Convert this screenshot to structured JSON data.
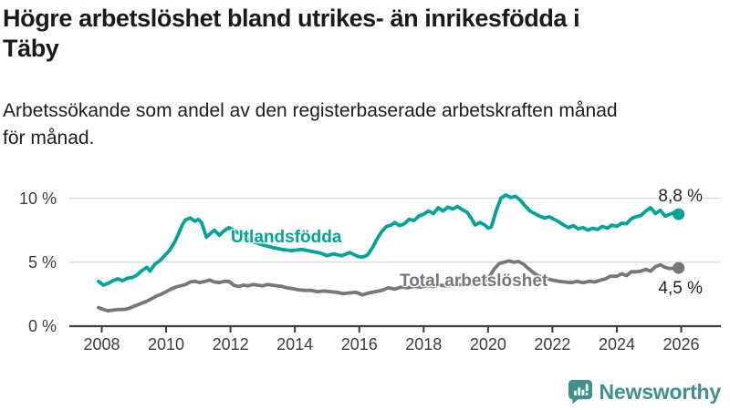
{
  "title": {
    "line1": "Högre arbetslöshet bland utrikes- än inrikesfödda i",
    "line2": "Täby"
  },
  "subtitle": {
    "line1": "Arbetssökande som andel av den registerbaserade arbetskraften månad",
    "line2": "för månad."
  },
  "footer": {
    "brand": "Newsworthy"
  },
  "colors": {
    "teal_line": "#00a398",
    "gray_line": "#76767c",
    "grid": "#d9d9d9",
    "axis": "#3d3d3d",
    "end_label_text": "#222222",
    "logo_teal": "#3f918e"
  },
  "chart_data": {
    "type": "line",
    "title": "Högre arbetslöshet bland utrikes- än inrikesfödda i Täby",
    "subtitle": "Arbetssökande som andel av den registerbaserade arbetskraften månad för månad.",
    "xlabel": "",
    "ylabel": "",
    "unit": "%",
    "grid": "horizontal",
    "legend": "inline-labels",
    "x_axis": {
      "ticks": [
        2008,
        2010,
        2012,
        2014,
        2016,
        2018,
        2020,
        2022,
        2024,
        2026
      ],
      "range": [
        2007.75,
        2026.3
      ]
    },
    "y_axis": {
      "ticks": [
        {
          "value": 0,
          "label": "0 %"
        },
        {
          "value": 5,
          "label": "5 %"
        },
        {
          "value": 10,
          "label": "10 %"
        }
      ],
      "range": [
        0,
        10.6
      ]
    },
    "series": [
      {
        "name": "Utlandsfödda",
        "color_key": "teal_line",
        "end_label": "8,8 %",
        "end_value": 8.8,
        "points": [
          [
            2007.9,
            3.5
          ],
          [
            2008.05,
            3.2
          ],
          [
            2008.2,
            3.35
          ],
          [
            2008.35,
            3.55
          ],
          [
            2008.5,
            3.7
          ],
          [
            2008.65,
            3.55
          ],
          [
            2008.8,
            3.75
          ],
          [
            2008.95,
            3.8
          ],
          [
            2009.1,
            4.0
          ],
          [
            2009.25,
            4.35
          ],
          [
            2009.4,
            4.6
          ],
          [
            2009.5,
            4.3
          ],
          [
            2009.65,
            4.85
          ],
          [
            2009.8,
            5.1
          ],
          [
            2009.95,
            5.5
          ],
          [
            2010.1,
            5.9
          ],
          [
            2010.25,
            6.5
          ],
          [
            2010.4,
            7.3
          ],
          [
            2010.5,
            7.9
          ],
          [
            2010.6,
            8.3
          ],
          [
            2010.75,
            8.45
          ],
          [
            2010.9,
            8.2
          ],
          [
            2011.0,
            8.35
          ],
          [
            2011.1,
            8.1
          ],
          [
            2011.25,
            6.95
          ],
          [
            2011.4,
            7.3
          ],
          [
            2011.5,
            7.5
          ],
          [
            2011.65,
            7.1
          ],
          [
            2011.8,
            7.45
          ],
          [
            2011.95,
            7.7
          ],
          [
            2012.1,
            7.5
          ],
          [
            2012.4,
            7.0
          ],
          [
            2012.7,
            6.6
          ],
          [
            2013.0,
            6.35
          ],
          [
            2013.3,
            6.15
          ],
          [
            2013.6,
            6.0
          ],
          [
            2013.9,
            5.9
          ],
          [
            2014.2,
            6.0
          ],
          [
            2014.5,
            5.85
          ],
          [
            2014.8,
            5.7
          ],
          [
            2015.0,
            5.5
          ],
          [
            2015.2,
            5.65
          ],
          [
            2015.45,
            5.5
          ],
          [
            2015.7,
            5.75
          ],
          [
            2015.95,
            5.45
          ],
          [
            2016.1,
            5.4
          ],
          [
            2016.25,
            5.55
          ],
          [
            2016.4,
            6.1
          ],
          [
            2016.55,
            6.8
          ],
          [
            2016.7,
            7.4
          ],
          [
            2016.85,
            7.8
          ],
          [
            2017.0,
            7.9
          ],
          [
            2017.1,
            8.1
          ],
          [
            2017.25,
            7.85
          ],
          [
            2017.4,
            8.0
          ],
          [
            2017.55,
            8.35
          ],
          [
            2017.7,
            8.25
          ],
          [
            2017.85,
            8.6
          ],
          [
            2018.0,
            8.75
          ],
          [
            2018.15,
            9.0
          ],
          [
            2018.3,
            8.8
          ],
          [
            2018.45,
            9.25
          ],
          [
            2018.6,
            9.0
          ],
          [
            2018.75,
            9.3
          ],
          [
            2018.9,
            9.15
          ],
          [
            2019.05,
            9.35
          ],
          [
            2019.2,
            9.1
          ],
          [
            2019.35,
            8.9
          ],
          [
            2019.5,
            8.35
          ],
          [
            2019.6,
            7.9
          ],
          [
            2019.75,
            8.1
          ],
          [
            2019.9,
            7.9
          ],
          [
            2020.0,
            7.65
          ],
          [
            2020.1,
            7.75
          ],
          [
            2020.25,
            9.0
          ],
          [
            2020.4,
            10.0
          ],
          [
            2020.55,
            10.25
          ],
          [
            2020.7,
            10.05
          ],
          [
            2020.85,
            10.15
          ],
          [
            2021.0,
            9.85
          ],
          [
            2021.15,
            9.4
          ],
          [
            2021.3,
            9.0
          ],
          [
            2021.45,
            8.8
          ],
          [
            2021.6,
            8.6
          ],
          [
            2021.75,
            8.45
          ],
          [
            2021.9,
            8.55
          ],
          [
            2022.05,
            8.35
          ],
          [
            2022.2,
            8.15
          ],
          [
            2022.35,
            7.9
          ],
          [
            2022.5,
            7.7
          ],
          [
            2022.65,
            7.85
          ],
          [
            2022.8,
            7.6
          ],
          [
            2022.95,
            7.7
          ],
          [
            2023.1,
            7.5
          ],
          [
            2023.25,
            7.65
          ],
          [
            2023.4,
            7.55
          ],
          [
            2023.55,
            7.8
          ],
          [
            2023.7,
            7.65
          ],
          [
            2023.85,
            7.9
          ],
          [
            2024.0,
            7.8
          ],
          [
            2024.15,
            8.05
          ],
          [
            2024.3,
            8.0
          ],
          [
            2024.45,
            8.4
          ],
          [
            2024.6,
            8.55
          ],
          [
            2024.75,
            8.65
          ],
          [
            2024.9,
            9.0
          ],
          [
            2025.05,
            9.25
          ],
          [
            2025.2,
            8.8
          ],
          [
            2025.35,
            9.05
          ],
          [
            2025.5,
            8.6
          ],
          [
            2025.65,
            8.75
          ],
          [
            2025.8,
            8.9
          ],
          [
            2025.92,
            8.75
          ]
        ]
      },
      {
        "name": "Total arbetslöshet",
        "color_key": "gray_line",
        "end_label": "4,5 %",
        "end_value": 4.5,
        "points": [
          [
            2007.9,
            1.45
          ],
          [
            2008.05,
            1.3
          ],
          [
            2008.2,
            1.2
          ],
          [
            2008.35,
            1.25
          ],
          [
            2008.5,
            1.3
          ],
          [
            2008.65,
            1.3
          ],
          [
            2008.8,
            1.35
          ],
          [
            2008.95,
            1.5
          ],
          [
            2009.1,
            1.65
          ],
          [
            2009.25,
            1.8
          ],
          [
            2009.4,
            1.95
          ],
          [
            2009.55,
            2.15
          ],
          [
            2009.7,
            2.35
          ],
          [
            2009.85,
            2.5
          ],
          [
            2010.0,
            2.7
          ],
          [
            2010.15,
            2.9
          ],
          [
            2010.3,
            3.05
          ],
          [
            2010.45,
            3.15
          ],
          [
            2010.6,
            3.25
          ],
          [
            2010.75,
            3.45
          ],
          [
            2010.9,
            3.5
          ],
          [
            2011.05,
            3.4
          ],
          [
            2011.2,
            3.5
          ],
          [
            2011.35,
            3.6
          ],
          [
            2011.5,
            3.45
          ],
          [
            2011.65,
            3.4
          ],
          [
            2011.8,
            3.5
          ],
          [
            2011.95,
            3.5
          ],
          [
            2012.1,
            3.2
          ],
          [
            2012.25,
            3.1
          ],
          [
            2012.4,
            3.2
          ],
          [
            2012.55,
            3.15
          ],
          [
            2012.7,
            3.25
          ],
          [
            2012.85,
            3.2
          ],
          [
            2013.0,
            3.15
          ],
          [
            2013.15,
            3.25
          ],
          [
            2013.3,
            3.2
          ],
          [
            2013.45,
            3.15
          ],
          [
            2013.6,
            3.1
          ],
          [
            2013.75,
            3.0
          ],
          [
            2013.9,
            2.95
          ],
          [
            2014.1,
            2.85
          ],
          [
            2014.3,
            2.8
          ],
          [
            2014.5,
            2.8
          ],
          [
            2014.7,
            2.7
          ],
          [
            2014.9,
            2.75
          ],
          [
            2015.1,
            2.7
          ],
          [
            2015.3,
            2.65
          ],
          [
            2015.5,
            2.55
          ],
          [
            2015.7,
            2.6
          ],
          [
            2015.9,
            2.65
          ],
          [
            2016.1,
            2.45
          ],
          [
            2016.3,
            2.6
          ],
          [
            2016.5,
            2.7
          ],
          [
            2016.7,
            2.8
          ],
          [
            2016.9,
            3.0
          ],
          [
            2017.1,
            2.9
          ],
          [
            2017.3,
            3.05
          ],
          [
            2017.5,
            3.0
          ],
          [
            2017.7,
            3.1
          ],
          [
            2017.9,
            3.05
          ],
          [
            2018.1,
            3.15
          ],
          [
            2018.3,
            3.1
          ],
          [
            2018.5,
            3.2
          ],
          [
            2018.7,
            3.15
          ],
          [
            2018.9,
            3.2
          ],
          [
            2019.1,
            3.25
          ],
          [
            2019.3,
            3.2
          ],
          [
            2019.5,
            3.3
          ],
          [
            2019.7,
            3.35
          ],
          [
            2019.9,
            3.5
          ],
          [
            2020.05,
            3.9
          ],
          [
            2020.2,
            4.5
          ],
          [
            2020.35,
            4.9
          ],
          [
            2020.5,
            5.0
          ],
          [
            2020.65,
            5.1
          ],
          [
            2020.8,
            5.0
          ],
          [
            2020.95,
            5.05
          ],
          [
            2021.1,
            4.85
          ],
          [
            2021.25,
            4.5
          ],
          [
            2021.4,
            4.2
          ],
          [
            2021.55,
            3.95
          ],
          [
            2021.7,
            3.8
          ],
          [
            2021.85,
            3.7
          ],
          [
            2022.0,
            3.6
          ],
          [
            2022.2,
            3.5
          ],
          [
            2022.4,
            3.45
          ],
          [
            2022.6,
            3.4
          ],
          [
            2022.75,
            3.5
          ],
          [
            2022.95,
            3.4
          ],
          [
            2023.15,
            3.5
          ],
          [
            2023.3,
            3.45
          ],
          [
            2023.5,
            3.6
          ],
          [
            2023.65,
            3.7
          ],
          [
            2023.8,
            3.9
          ],
          [
            2024.0,
            3.9
          ],
          [
            2024.15,
            4.1
          ],
          [
            2024.3,
            3.95
          ],
          [
            2024.45,
            4.25
          ],
          [
            2024.6,
            4.25
          ],
          [
            2024.75,
            4.3
          ],
          [
            2024.9,
            4.45
          ],
          [
            2025.05,
            4.3
          ],
          [
            2025.2,
            4.65
          ],
          [
            2025.35,
            4.8
          ],
          [
            2025.5,
            4.6
          ],
          [
            2025.65,
            4.5
          ],
          [
            2025.8,
            4.55
          ],
          [
            2025.92,
            4.55
          ]
        ]
      }
    ]
  }
}
